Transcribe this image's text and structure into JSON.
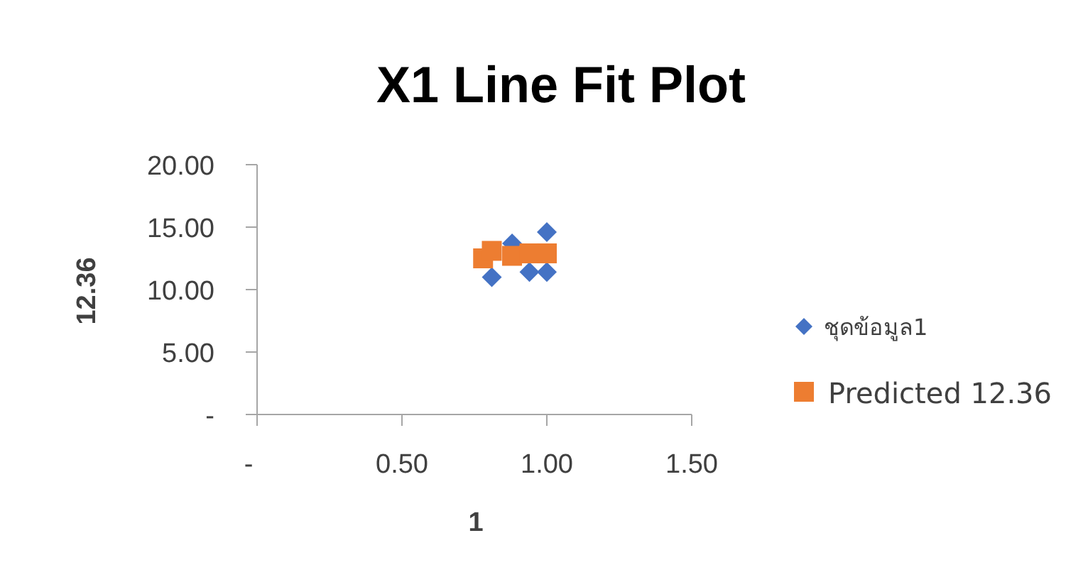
{
  "chart_data": {
    "type": "scatter",
    "title": "X1 Line Fit  Plot",
    "xlabel": "1",
    "ylabel": "12.36",
    "xlim": [
      0,
      1.5
    ],
    "xticks": [
      {
        "value": 0,
        "label": "-"
      },
      {
        "value": 0.5,
        "label": "0.50"
      },
      {
        "value": 1.0,
        "label": "1.00"
      },
      {
        "value": 1.5,
        "label": "1.50"
      }
    ],
    "ylim": [
      0,
      20
    ],
    "yticks": [
      {
        "value": 0,
        "label": "-"
      },
      {
        "value": 5,
        "label": "5.00"
      },
      {
        "value": 10,
        "label": "10.00"
      },
      {
        "value": 15,
        "label": "15.00"
      },
      {
        "value": 20,
        "label": "20.00"
      }
    ],
    "grid": false,
    "legend": "right",
    "series": [
      {
        "name": "ชุดข้อมูล1",
        "color": "#4472c4",
        "marker": "diamond",
        "x": [
          0.81,
          0.88,
          0.94,
          1.0,
          1.0
        ],
        "values": [
          11.0,
          13.7,
          11.4,
          11.4,
          14.6
        ]
      },
      {
        "name": "Predicted 12.36",
        "color": "#ed7d31",
        "marker": "square",
        "x": [
          0.78,
          0.81,
          0.88,
          0.94,
          1.0
        ],
        "values": [
          12.5,
          13.1,
          12.7,
          12.9,
          12.9
        ]
      }
    ]
  }
}
